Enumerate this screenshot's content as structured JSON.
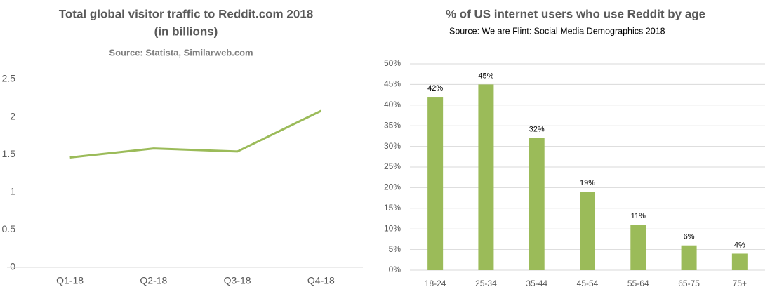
{
  "chart_data": [
    {
      "type": "line",
      "title": "Total global visitor traffic to Reddit.com 2018",
      "subtitle": "(in billions)",
      "source": "Source: Statista, Similarweb.com",
      "categories": [
        "Q1-18",
        "Q2-18",
        "Q3-18",
        "Q4-18"
      ],
      "values": [
        1.46,
        1.58,
        1.54,
        2.08
      ],
      "color": "#9bbb59",
      "ylim": [
        0,
        2.5
      ],
      "yticks": [
        0,
        0.5,
        1,
        1.5,
        2,
        2.5
      ],
      "grid": false
    },
    {
      "type": "bar",
      "title": "% of US internet users who use Reddit by age",
      "source": "Source:  We are Flint: Social Media Demographics 2018",
      "categories": [
        "18-24",
        "25-34",
        "35-44",
        "45-54",
        "55-64",
        "65-75",
        "75+"
      ],
      "values": [
        42,
        45,
        32,
        19,
        11,
        6,
        4
      ],
      "value_labels": [
        "42%",
        "45%",
        "32%",
        "19%",
        "11%",
        "6%",
        "4%"
      ],
      "color": "#9bbb59",
      "ylim": [
        0,
        50
      ],
      "yticks": [
        {
          "value": 0,
          "label": "0%"
        },
        {
          "value": 5,
          "label": "5%"
        },
        {
          "value": 10,
          "label": "10%"
        },
        {
          "value": 15,
          "label": "15%"
        },
        {
          "value": 20,
          "label": "20%"
        },
        {
          "value": 25,
          "label": "25%"
        },
        {
          "value": 30,
          "label": "30%"
        },
        {
          "value": 35,
          "label": "35%"
        },
        {
          "value": 40,
          "label": "40%"
        },
        {
          "value": 45,
          "label": "45%"
        },
        {
          "value": 50,
          "label": "50%"
        }
      ],
      "grid": true
    }
  ]
}
